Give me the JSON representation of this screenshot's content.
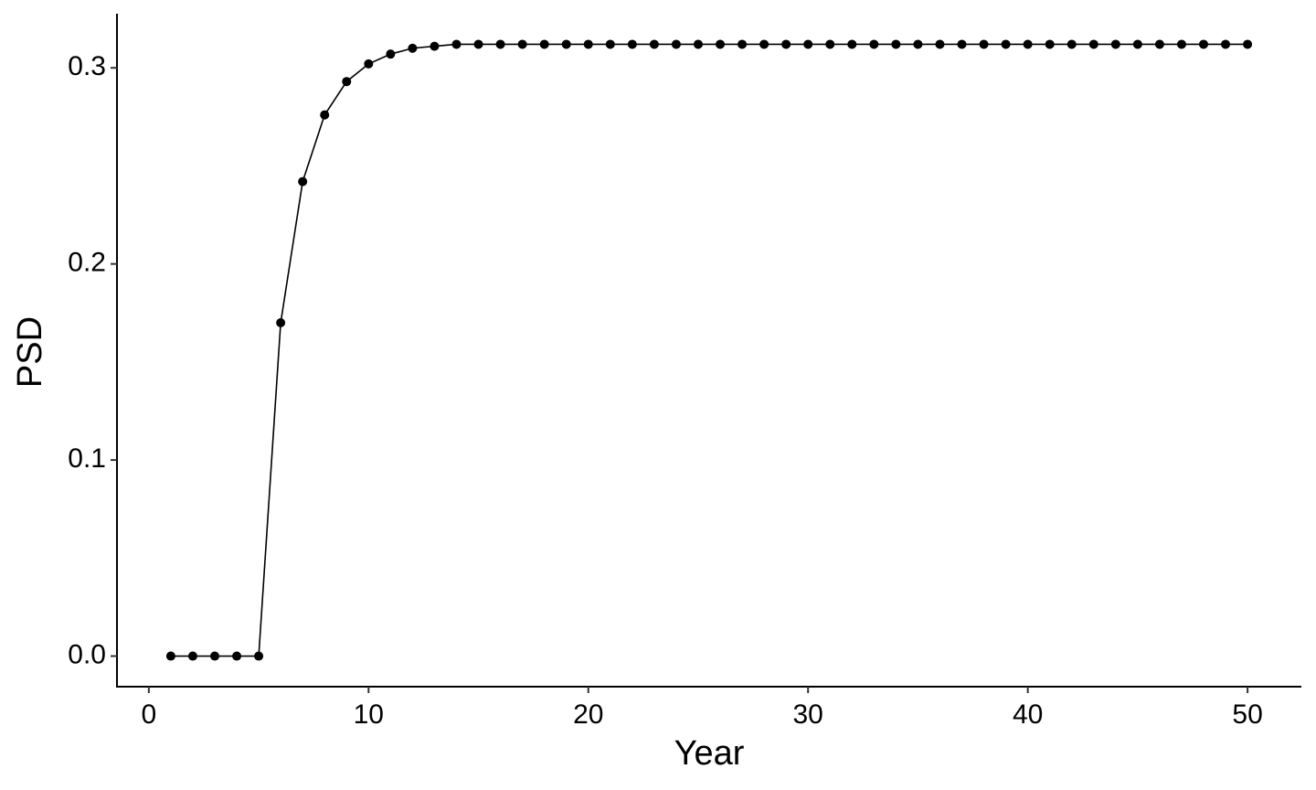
{
  "chart_data": {
    "type": "line",
    "x_label": "Year",
    "y_label": "PSD",
    "x": [
      1,
      2,
      3,
      4,
      5,
      6,
      7,
      8,
      9,
      10,
      11,
      12,
      13,
      14,
      15,
      16,
      17,
      18,
      19,
      20,
      21,
      22,
      23,
      24,
      25,
      26,
      27,
      28,
      29,
      30,
      31,
      32,
      33,
      34,
      35,
      36,
      37,
      38,
      39,
      40,
      41,
      42,
      43,
      44,
      45,
      46,
      47,
      48,
      49,
      50
    ],
    "values": [
      0,
      0,
      0,
      0,
      0,
      0.17,
      0.242,
      0.276,
      0.293,
      0.302,
      0.307,
      0.31,
      0.311,
      0.312,
      0.312,
      0.312,
      0.312,
      0.312,
      0.312,
      0.312,
      0.312,
      0.312,
      0.312,
      0.312,
      0.312,
      0.312,
      0.312,
      0.312,
      0.312,
      0.312,
      0.312,
      0.312,
      0.312,
      0.312,
      0.312,
      0.312,
      0.312,
      0.312,
      0.312,
      0.312,
      0.312,
      0.312,
      0.312,
      0.312,
      0.312,
      0.312,
      0.312,
      0.312,
      0.312,
      0.312
    ],
    "color": "#000000",
    "xlim": [
      -1.45,
      52.45
    ],
    "xticks": [
      0,
      10,
      20,
      30,
      40,
      50
    ],
    "ylim": [
      -0.0156,
      0.3276
    ],
    "yticks": [
      {
        "value": 0,
        "label": "0.0"
      },
      0.1,
      0.2,
      0.3
    ],
    "grid": false
  }
}
